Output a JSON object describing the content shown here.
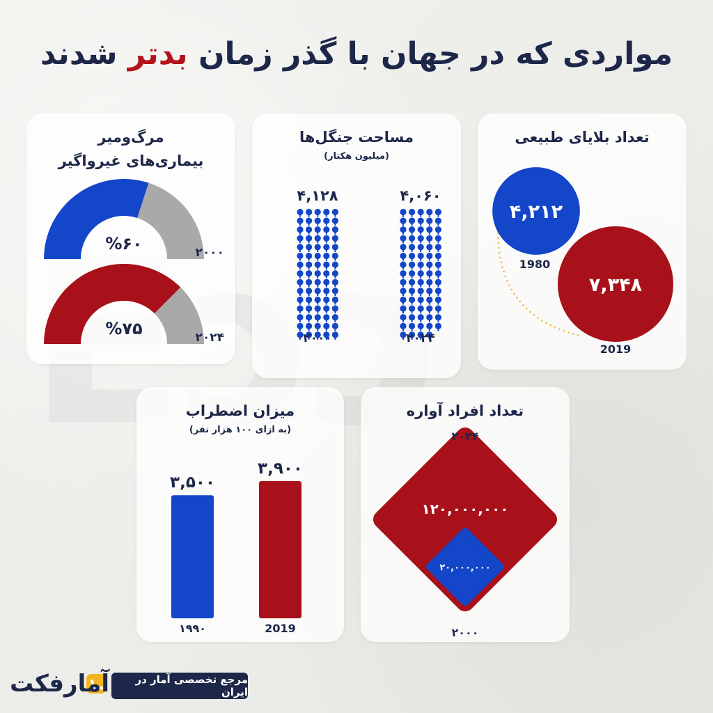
{
  "title": {
    "part1": "مواردی که در جهان با گذر زمان",
    "accent": "بدتر",
    "part2": "شدند"
  },
  "colors": {
    "blue": "#1346c8",
    "red": "#a8101a",
    "gray": "#a9a9a9",
    "navy": "#1d2749"
  },
  "footer": {
    "badge": "مرجع تخصصی آمار در ایران",
    "logo": "آمارفکت"
  },
  "chart_data": [
    {
      "type": "gauge",
      "title_line1": "مرگ‌ومیر",
      "title_line2": "بیماری‌های غیرواگیر",
      "items": [
        {
          "label": "۲۰۰۰",
          "value": 60,
          "value_label": "%۶۰",
          "color": "#1346c8"
        },
        {
          "label": "۲۰۲۴",
          "value": 75,
          "value_label": "%۷۵",
          "color": "#a8101a"
        }
      ]
    },
    {
      "type": "pictogram",
      "title": "مساحت جنگل‌ها",
      "subtitle": "(میلیون هکتار)",
      "items": [
        {
          "label": "۲۰۰۰",
          "value": 4128,
          "value_label": "۴,۱۲۸"
        },
        {
          "label": "۲۰۲۴",
          "value": 4060,
          "value_label": "۴,۰۶۰"
        }
      ]
    },
    {
      "type": "bubble",
      "title": "تعداد بلایای طبیعی",
      "items": [
        {
          "label": "1980",
          "value": 4212,
          "value_label": "۴,۲۱۲",
          "color": "#1346c8"
        },
        {
          "label": "2019",
          "value": 7348,
          "value_label": "۷,۳۴۸",
          "color": "#a8101a"
        }
      ]
    },
    {
      "type": "bar",
      "title": "میزان اضطراب",
      "subtitle": "(به ازای ۱۰۰ هزار نفر)",
      "categories": [
        "۱۹۹۰",
        "2019"
      ],
      "values": [
        3500,
        3900
      ],
      "value_labels": [
        "۳,۵۰۰",
        "۳,۹۰۰"
      ],
      "colors": [
        "#1346c8",
        "#a8101a"
      ]
    },
    {
      "type": "area",
      "title": "تعداد افراد آواره",
      "items": [
        {
          "label": "۲۰۲۴",
          "value": 120000000,
          "value_label": "۱۲۰,۰۰۰,۰۰۰",
          "color": "#a8101a"
        },
        {
          "label": "۲۰۰۰",
          "value": 20000000,
          "value_label": "۲۰,۰۰۰,۰۰۰",
          "color": "#1346c8"
        }
      ]
    }
  ]
}
